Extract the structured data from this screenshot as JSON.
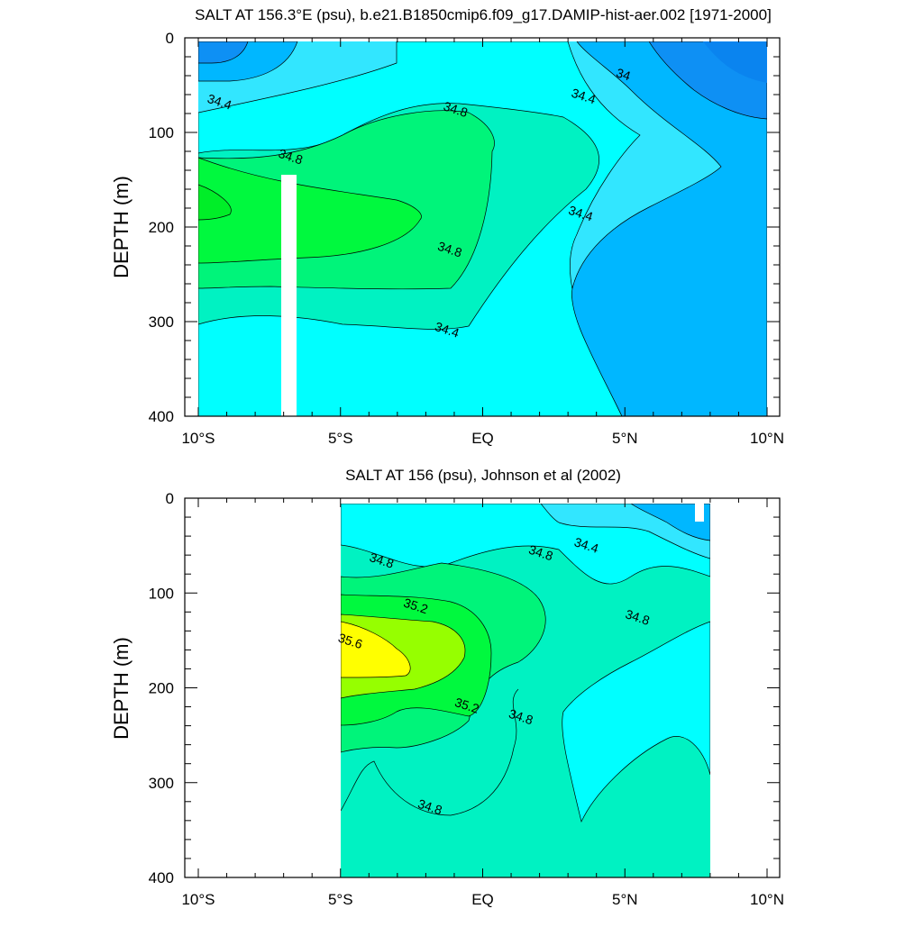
{
  "chart_data": [
    {
      "type": "contour",
      "title": "SALT AT 156.3°E (psu), b.e21.B1850cmip6.f09_g17.DAMIP-hist-aer.002 [1971-2000]",
      "ylabel": "DEPTH (m)",
      "xlabel": "",
      "xlim": [
        -10,
        10
      ],
      "ylim": [
        400,
        0
      ],
      "x_ticks": [
        -10,
        -5,
        0,
        5,
        10
      ],
      "x_tick_labels": [
        "10°S",
        "5°S",
        "EQ",
        "5°N",
        "10°N"
      ],
      "y_ticks": [
        0,
        100,
        200,
        300,
        400
      ],
      "y_tick_labels": [
        "0",
        "100",
        "200",
        "300",
        "400"
      ],
      "contour_interval": 0.2,
      "contour_labels": [
        {
          "text": "34.4",
          "lat": -9.3,
          "depth": 72
        },
        {
          "text": "34.8",
          "lat": -1.0,
          "depth": 80
        },
        {
          "text": "34.8",
          "lat": -6.8,
          "depth": 130
        },
        {
          "text": "34.8",
          "lat": -1.2,
          "depth": 228
        },
        {
          "text": "34.4",
          "lat": -1.3,
          "depth": 313
        },
        {
          "text": "34.4",
          "lat": 3.5,
          "depth": 66
        },
        {
          "text": "34",
          "lat": 4.9,
          "depth": 43
        },
        {
          "text": "34.4",
          "lat": 3.4,
          "depth": 190
        }
      ],
      "regions": [
        {
          "value": 34.0,
          "color": "#0e90f4"
        },
        {
          "value": 34.2,
          "color": "#00b7ff"
        },
        {
          "value": 34.4,
          "color": "#32e6ff"
        },
        {
          "value": 34.6,
          "color": "#00ffff"
        },
        {
          "value": 34.8,
          "color": "#00f2c2"
        },
        {
          "value": 35.0,
          "color": "#00f47a"
        },
        {
          "value": 35.2,
          "color": "#00f93e"
        }
      ]
    },
    {
      "type": "contour",
      "title": "SALT AT 156 (psu), Johnson et al (2002)",
      "ylabel": "DEPTH (m)",
      "xlabel": "",
      "xlim": [
        -10,
        10
      ],
      "ylim": [
        400,
        0
      ],
      "x_ticks": [
        -10,
        -5,
        0,
        5,
        10
      ],
      "x_tick_labels": [
        "10°S",
        "5°S",
        "EQ",
        "5°N",
        "10°N"
      ],
      "y_ticks": [
        0,
        100,
        200,
        300,
        400
      ],
      "y_tick_labels": [
        "0",
        "100",
        "200",
        "300",
        "400"
      ],
      "contour_interval": 0.2,
      "contour_labels": [
        {
          "text": "34.8",
          "lat": -3.6,
          "depth": 70
        },
        {
          "text": "34.4",
          "lat": 3.6,
          "depth": 54
        },
        {
          "text": "34.8",
          "lat": 2.0,
          "depth": 62
        },
        {
          "text": "35.2",
          "lat": -2.4,
          "depth": 118
        },
        {
          "text": "35.6",
          "lat": -4.7,
          "depth": 155
        },
        {
          "text": "35.2",
          "lat": -0.6,
          "depth": 223
        },
        {
          "text": "34.8",
          "lat": 1.3,
          "depth": 235
        },
        {
          "text": "34.8",
          "lat": 5.4,
          "depth": 130
        },
        {
          "text": "34.8",
          "lat": -1.9,
          "depth": 330
        }
      ],
      "regions": [
        {
          "value": 34.2,
          "color": "#00b7ff"
        },
        {
          "value": 34.4,
          "color": "#32e6ff"
        },
        {
          "value": 34.6,
          "color": "#00ffff"
        },
        {
          "value": 34.8,
          "color": "#00f2c2"
        },
        {
          "value": 35.0,
          "color": "#00f47a"
        },
        {
          "value": 35.2,
          "color": "#00f93e"
        },
        {
          "value": 35.4,
          "color": "#96ff00"
        },
        {
          "value": 35.6,
          "color": "#ffff00"
        }
      ]
    }
  ]
}
